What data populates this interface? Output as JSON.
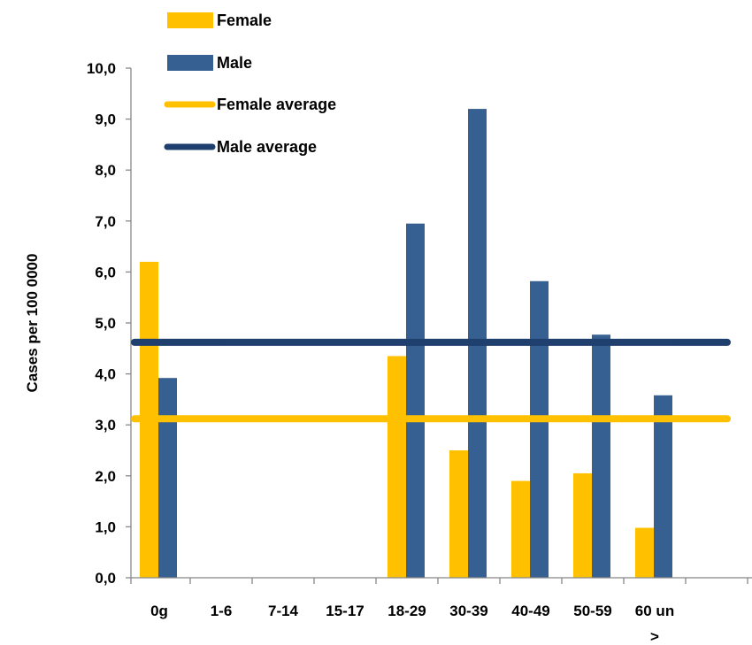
{
  "chart_data": {
    "type": "bar",
    "title": "",
    "xlabel": "",
    "ylabel": "Cases per 100 0000",
    "ylim": [
      0,
      10
    ],
    "y_ticks": [
      "0,0",
      "1,0",
      "2,0",
      "3,0",
      "4,0",
      "5,0",
      "6,0",
      "7,0",
      "8,0",
      "9,0",
      "10,0"
    ],
    "categories": [
      "0g",
      "1-6",
      "7-14",
      "15-17",
      "18-29",
      "30-39",
      "40-49",
      "50-59",
      "60 un >"
    ],
    "category_lines": [
      [
        "0g"
      ],
      [
        "1-6"
      ],
      [
        "7-14"
      ],
      [
        "15-17"
      ],
      [
        "18-29"
      ],
      [
        "30-39"
      ],
      [
        "40-49"
      ],
      [
        "50-59"
      ],
      [
        "60 un",
        ">"
      ]
    ],
    "series": [
      {
        "name": "Female",
        "color": "#FFC000",
        "values": [
          6.2,
          0,
          0,
          0,
          4.35,
          2.5,
          1.9,
          2.05,
          0.98
        ]
      },
      {
        "name": "Male",
        "color": "#376092",
        "values": [
          3.92,
          0,
          0,
          0,
          6.95,
          9.2,
          5.82,
          4.77,
          3.58
        ]
      }
    ],
    "averages": [
      {
        "name": "Female average",
        "color": "#FFC000",
        "value": 3.12
      },
      {
        "name": "Male average",
        "color": "#1F3F6E",
        "value": 4.62
      }
    ],
    "grid": false,
    "legend_position": "top"
  }
}
